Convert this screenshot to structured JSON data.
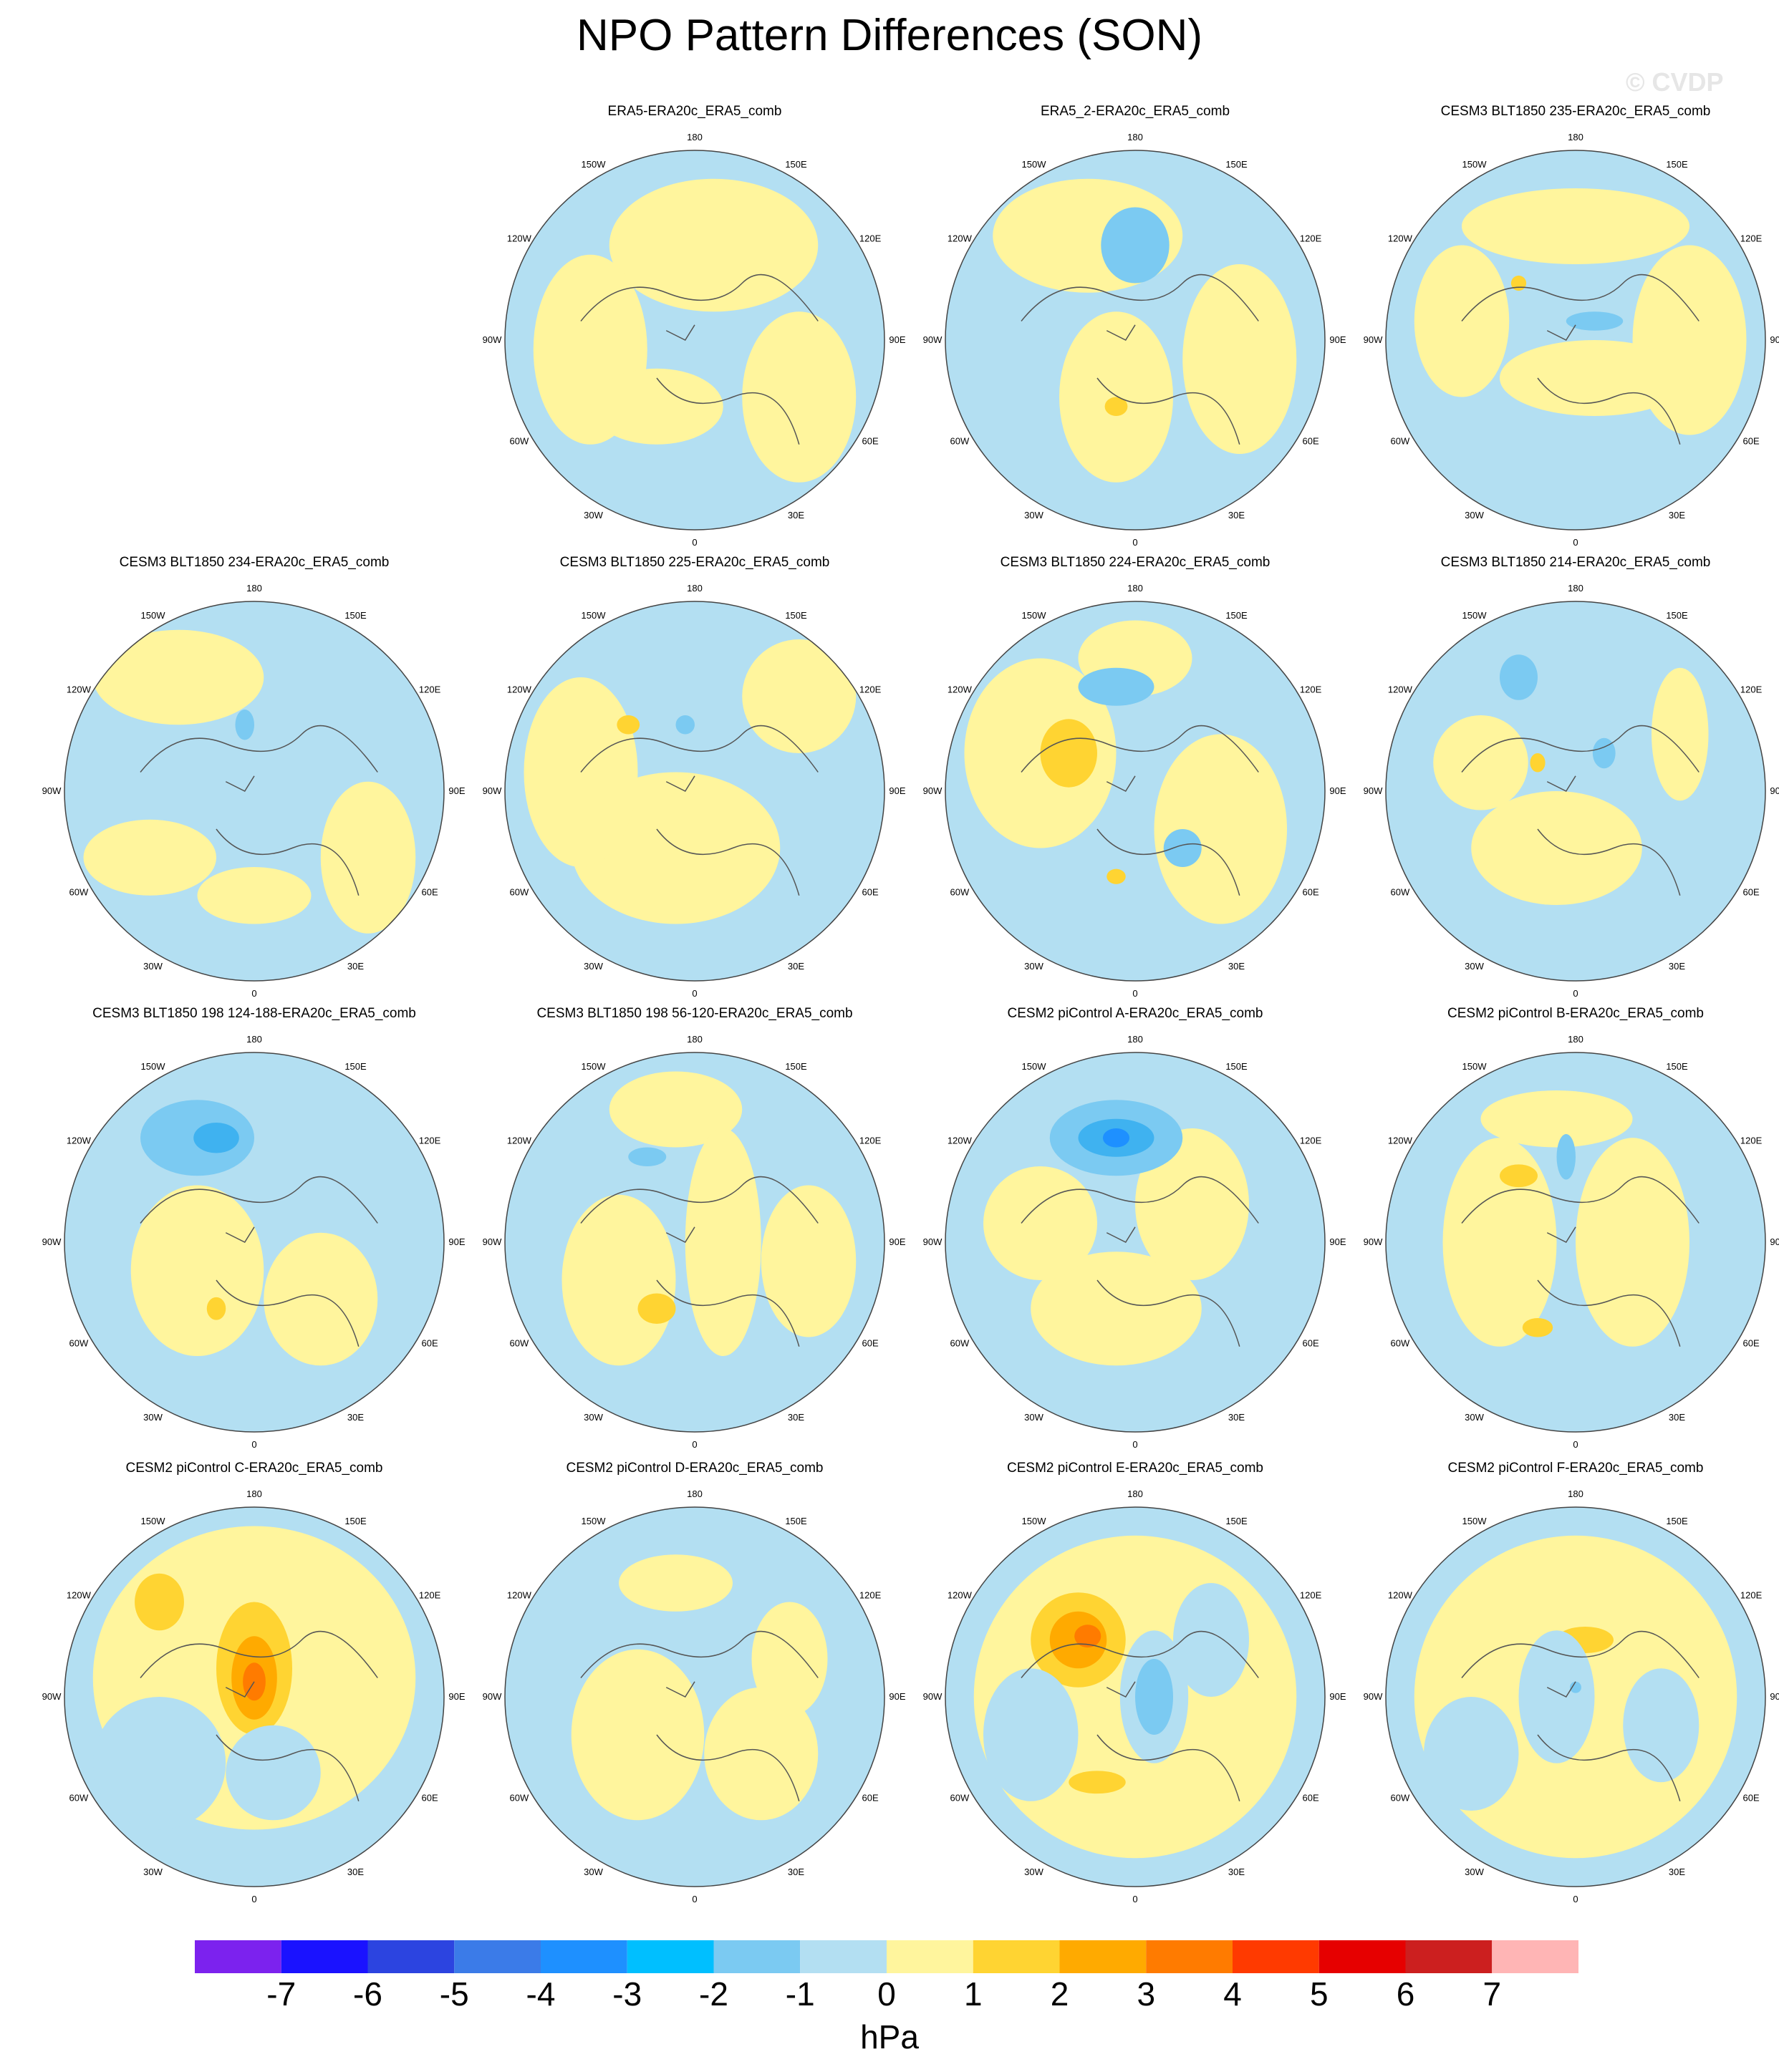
{
  "title": "NPO Pattern Differences (SON)",
  "watermark": "© CVDP",
  "lon_labels": [
    "180",
    "150E",
    "120E",
    "90E",
    "60E",
    "30E",
    "0",
    "30W",
    "60W",
    "90W",
    "120W",
    "150W"
  ],
  "colors": {
    "ocean_land_fill": "#b3dff2",
    "positive_1": "#fff59d",
    "positive_2": "#ffd432",
    "positive_3": "#ffaa00",
    "positive_4": "#ff7b00",
    "negative_2": "#7bcaf2",
    "negative_3": "#3fb2f0",
    "negative_4": "#1e90ff",
    "coastline": "#555555"
  },
  "panels": [
    {
      "title": "ERA5-ERA20c_ERA5_comb",
      "blobs": [
        [
          0.1,
          -0.5,
          0.55,
          0.35,
          "positive_1"
        ],
        [
          -0.55,
          0.05,
          0.3,
          0.5,
          "positive_1"
        ],
        [
          0.55,
          0.3,
          0.3,
          0.45,
          "positive_1"
        ],
        [
          -0.2,
          0.35,
          0.35,
          0.2,
          "positive_1"
        ]
      ]
    },
    {
      "title": "ERA5_2-ERA20c_ERA5_comb",
      "blobs": [
        [
          -0.25,
          -0.55,
          0.5,
          0.3,
          "positive_1"
        ],
        [
          -0.1,
          0.3,
          0.3,
          0.45,
          "positive_1"
        ],
        [
          0.55,
          0.1,
          0.3,
          0.5,
          "positive_1"
        ],
        [
          -0.1,
          0.35,
          0.06,
          0.05,
          "positive_2"
        ],
        [
          0.0,
          -0.5,
          0.18,
          0.2,
          "negative_2"
        ]
      ]
    },
    {
      "title": "CESM3 BLT1850 235-ERA20c_ERA5_comb",
      "blobs": [
        [
          0.0,
          -0.6,
          0.6,
          0.2,
          "positive_1"
        ],
        [
          -0.6,
          -0.1,
          0.25,
          0.4,
          "positive_1"
        ],
        [
          0.6,
          0.0,
          0.3,
          0.5,
          "positive_1"
        ],
        [
          0.1,
          0.2,
          0.5,
          0.2,
          "positive_1"
        ],
        [
          0.1,
          -0.1,
          0.15,
          0.05,
          "negative_2"
        ],
        [
          -0.3,
          -0.3,
          0.04,
          0.04,
          "positive_2"
        ]
      ]
    },
    {
      "title": "CESM3 BLT1850 234-ERA20c_ERA5_comb",
      "blobs": [
        [
          -0.4,
          -0.6,
          0.45,
          0.25,
          "positive_1"
        ],
        [
          0.6,
          0.35,
          0.25,
          0.4,
          "positive_1"
        ],
        [
          -0.55,
          0.35,
          0.35,
          0.2,
          "positive_1"
        ],
        [
          -0.05,
          -0.35,
          0.05,
          0.08,
          "negative_2"
        ],
        [
          0.0,
          0.55,
          0.3,
          0.15,
          "positive_1"
        ]
      ]
    },
    {
      "title": "CESM3 BLT1850 225-ERA20c_ERA5_comb",
      "blobs": [
        [
          -0.1,
          0.3,
          0.55,
          0.4,
          "positive_1"
        ],
        [
          0.55,
          -0.5,
          0.3,
          0.3,
          "positive_1"
        ],
        [
          -0.6,
          -0.1,
          0.3,
          0.5,
          "positive_1"
        ],
        [
          -0.35,
          -0.35,
          0.06,
          0.05,
          "positive_2"
        ],
        [
          -0.05,
          -0.35,
          0.05,
          0.05,
          "negative_2"
        ]
      ]
    },
    {
      "title": "CESM3 BLT1850 224-ERA20c_ERA5_comb",
      "blobs": [
        [
          -0.5,
          -0.2,
          0.4,
          0.5,
          "positive_1"
        ],
        [
          0.45,
          0.2,
          0.35,
          0.5,
          "positive_1"
        ],
        [
          0.0,
          -0.7,
          0.3,
          0.2,
          "positive_1"
        ],
        [
          -0.35,
          -0.2,
          0.15,
          0.18,
          "positive_2"
        ],
        [
          -0.1,
          -0.55,
          0.2,
          0.1,
          "negative_2"
        ],
        [
          0.25,
          0.3,
          0.1,
          0.1,
          "negative_2"
        ],
        [
          -0.1,
          0.45,
          0.05,
          0.04,
          "positive_2"
        ]
      ]
    },
    {
      "title": "CESM3 BLT1850 214-ERA20c_ERA5_comb",
      "blobs": [
        [
          -0.1,
          0.3,
          0.45,
          0.3,
          "positive_1"
        ],
        [
          0.55,
          -0.3,
          0.15,
          0.35,
          "positive_1"
        ],
        [
          -0.5,
          -0.15,
          0.25,
          0.25,
          "positive_1"
        ],
        [
          -0.3,
          -0.6,
          0.1,
          0.12,
          "negative_2"
        ],
        [
          0.15,
          -0.2,
          0.06,
          0.08,
          "negative_2"
        ],
        [
          -0.2,
          -0.15,
          0.04,
          0.05,
          "positive_2"
        ]
      ]
    },
    {
      "title": "CESM3 BLT1850 198 124-188-ERA20c_ERA5_comb",
      "blobs": [
        [
          -0.3,
          0.15,
          0.35,
          0.45,
          "positive_1"
        ],
        [
          0.35,
          0.3,
          0.3,
          0.35,
          "positive_1"
        ],
        [
          -0.3,
          -0.55,
          0.3,
          0.2,
          "negative_2"
        ],
        [
          -0.2,
          -0.55,
          0.12,
          0.08,
          "negative_3"
        ],
        [
          -0.2,
          0.35,
          0.05,
          0.06,
          "positive_2"
        ]
      ]
    },
    {
      "title": "CESM3 BLT1850 198 56-120-ERA20c_ERA5_comb",
      "blobs": [
        [
          -0.1,
          -0.7,
          0.35,
          0.2,
          "positive_1"
        ],
        [
          0.15,
          0.0,
          0.2,
          0.6,
          "positive_1"
        ],
        [
          -0.4,
          0.2,
          0.3,
          0.45,
          "positive_1"
        ],
        [
          0.6,
          0.1,
          0.25,
          0.4,
          "positive_1"
        ],
        [
          -0.25,
          -0.45,
          0.1,
          0.05,
          "negative_2"
        ],
        [
          -0.2,
          0.35,
          0.1,
          0.08,
          "positive_2"
        ]
      ]
    },
    {
      "title": "CESM2 piControl A-ERA20c_ERA5_comb",
      "blobs": [
        [
          -0.1,
          0.35,
          0.45,
          0.3,
          "positive_1"
        ],
        [
          0.3,
          -0.2,
          0.3,
          0.4,
          "positive_1"
        ],
        [
          -0.5,
          -0.1,
          0.3,
          0.3,
          "positive_1"
        ],
        [
          -0.1,
          -0.55,
          0.35,
          0.2,
          "negative_2"
        ],
        [
          -0.1,
          -0.55,
          0.2,
          0.1,
          "negative_3"
        ],
        [
          -0.1,
          -0.55,
          0.07,
          0.05,
          "negative_4"
        ]
      ]
    },
    {
      "title": "CESM2 piControl B-ERA20c_ERA5_comb",
      "blobs": [
        [
          -0.4,
          0.0,
          0.3,
          0.55,
          "positive_1"
        ],
        [
          0.3,
          0.0,
          0.3,
          0.55,
          "positive_1"
        ],
        [
          -0.1,
          -0.65,
          0.4,
          0.15,
          "positive_1"
        ],
        [
          -0.3,
          -0.35,
          0.1,
          0.06,
          "positive_2"
        ],
        [
          -0.2,
          0.45,
          0.08,
          0.05,
          "positive_2"
        ],
        [
          -0.05,
          -0.45,
          0.05,
          0.12,
          "negative_2"
        ]
      ]
    },
    {
      "title": "CESM2 piControl C-ERA20c_ERA5_comb",
      "blobs": [
        [
          0.0,
          -0.1,
          0.85,
          0.8,
          "positive_1"
        ],
        [
          0.0,
          -0.15,
          0.2,
          0.35,
          "positive_2"
        ],
        [
          0.0,
          -0.1,
          0.12,
          0.22,
          "positive_3"
        ],
        [
          0.0,
          -0.08,
          0.06,
          0.1,
          "positive_4"
        ],
        [
          -0.5,
          -0.5,
          0.13,
          0.15,
          "positive_2"
        ],
        [
          -0.5,
          0.35,
          0.35,
          0.35,
          "ocean_land_fill"
        ],
        [
          0.1,
          0.4,
          0.25,
          0.25,
          "ocean_land_fill"
        ]
      ]
    },
    {
      "title": "CESM2 piControl D-ERA20c_ERA5_comb",
      "blobs": [
        [
          -0.3,
          0.2,
          0.35,
          0.45,
          "positive_1"
        ],
        [
          0.35,
          0.3,
          0.3,
          0.35,
          "positive_1"
        ],
        [
          -0.1,
          -0.6,
          0.3,
          0.15,
          "positive_1"
        ],
        [
          0.5,
          -0.2,
          0.2,
          0.3,
          "positive_1"
        ]
      ]
    },
    {
      "title": "CESM2 piControl E-ERA20c_ERA5_comb",
      "blobs": [
        [
          0.0,
          0.0,
          0.85,
          0.85,
          "positive_1"
        ],
        [
          -0.3,
          -0.3,
          0.25,
          0.25,
          "positive_2"
        ],
        [
          -0.3,
          -0.3,
          0.15,
          0.15,
          "positive_3"
        ],
        [
          -0.25,
          -0.32,
          0.07,
          0.06,
          "positive_4"
        ],
        [
          0.1,
          0.0,
          0.18,
          0.35,
          "ocean_land_fill"
        ],
        [
          0.1,
          0.0,
          0.1,
          0.2,
          "negative_2"
        ],
        [
          -0.2,
          0.45,
          0.15,
          0.06,
          "positive_2"
        ],
        [
          -0.55,
          0.2,
          0.25,
          0.35,
          "ocean_land_fill"
        ],
        [
          0.4,
          -0.3,
          0.2,
          0.3,
          "ocean_land_fill"
        ]
      ]
    },
    {
      "title": "CESM2 piControl F-ERA20c_ERA5_comb",
      "blobs": [
        [
          0.0,
          0.0,
          0.85,
          0.85,
          "positive_1"
        ],
        [
          0.05,
          -0.3,
          0.15,
          0.07,
          "positive_2"
        ],
        [
          -0.1,
          0.0,
          0.2,
          0.35,
          "ocean_land_fill"
        ],
        [
          0.0,
          -0.05,
          0.03,
          0.03,
          "negative_2"
        ],
        [
          -0.55,
          0.3,
          0.25,
          0.3,
          "ocean_land_fill"
        ],
        [
          0.45,
          0.15,
          0.2,
          0.3,
          "ocean_land_fill"
        ]
      ]
    }
  ],
  "colorbar": {
    "colors": [
      "#7c22ee",
      "#1a12ff",
      "#2c44e0",
      "#3b7be8",
      "#1e90ff",
      "#00bfff",
      "#7bcaf2",
      "#b3dff2",
      "#fff59d",
      "#ffd432",
      "#ffaa00",
      "#ff7b00",
      "#ff3a00",
      "#e60000",
      "#cc1f1f",
      "#ffb5b5"
    ],
    "ticks": [
      "-7",
      "-6",
      "-5",
      "-4",
      "-3",
      "-2",
      "-1",
      "0",
      "1",
      "2",
      "3",
      "4",
      "5",
      "6",
      "7"
    ],
    "unit": "hPa"
  }
}
